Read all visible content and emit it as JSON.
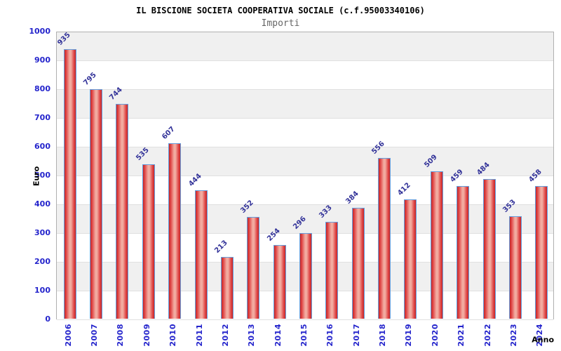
{
  "chart_data": {
    "type": "bar",
    "title": "IL BISCIONE SOCIETA COOPERATIVA SOCIALE (c.f.95003340106)",
    "subtitle": "Importi",
    "xlabel": "Anno",
    "ylabel": "Euro",
    "categories": [
      "2006",
      "2007",
      "2008",
      "2009",
      "2010",
      "2011",
      "2012",
      "2013",
      "2014",
      "2015",
      "2016",
      "2017",
      "2018",
      "2019",
      "2020",
      "2021",
      "2022",
      "2023",
      "2024"
    ],
    "values": [
      935,
      795,
      744,
      535,
      607,
      444,
      213,
      352,
      254,
      296,
      333,
      384,
      556,
      412,
      509,
      459,
      484,
      353,
      458
    ],
    "ylim": [
      0,
      1000
    ],
    "ytick_step": 100,
    "grid": "horizontal-bands-alternating",
    "legend": "none",
    "colors": {
      "bar_fill_edge": "#c62626",
      "bar_fill_mid": "#e04848",
      "bar_fill_highlight": "#f2aba0",
      "bar_border": "#64a0e0",
      "axis_tick_text": "#2424cc",
      "value_label_text": "#333399",
      "title_text": "#000000",
      "subtitle_text": "#666666",
      "band_gray": "#f0f0f0",
      "band_white": "#ffffff",
      "gridline": "#e0e0e0",
      "plot_border": "#b0b0b0"
    }
  }
}
